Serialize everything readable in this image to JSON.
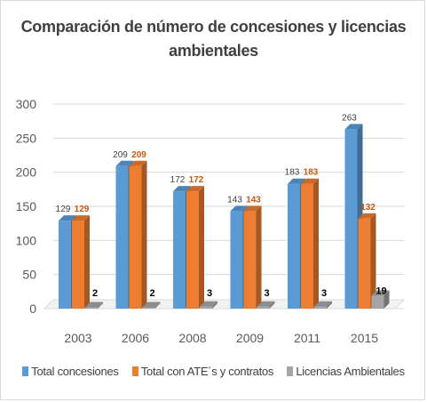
{
  "chart_data": {
    "type": "bar",
    "title": "Comparación de número de concesiones y licencias ambientales",
    "title_lines": [
      "Comparación de número de concesiones y licencias",
      "ambientales"
    ],
    "categories": [
      "2003",
      "2006",
      "2008",
      "2009",
      "2011",
      "2015"
    ],
    "series": [
      {
        "name": "Total concesiones",
        "color": "#5b9bd5",
        "values": [
          129,
          209,
          172,
          143,
          183,
          263
        ]
      },
      {
        "name": "Total con ATE´s y contratos",
        "color": "#ed7d31",
        "values": [
          129,
          209,
          172,
          143,
          183,
          132
        ]
      },
      {
        "name": "Licencias Ambientales",
        "color": "#a5a5a5",
        "values": [
          2,
          2,
          3,
          3,
          3,
          19
        ]
      }
    ],
    "ylim": [
      0,
      300
    ],
    "yticks": [
      0,
      50,
      100,
      150,
      200,
      250,
      300
    ],
    "xlabel": "",
    "ylabel": "",
    "grid": true,
    "legend_position": "bottom",
    "style": "3d-clustered-column"
  }
}
